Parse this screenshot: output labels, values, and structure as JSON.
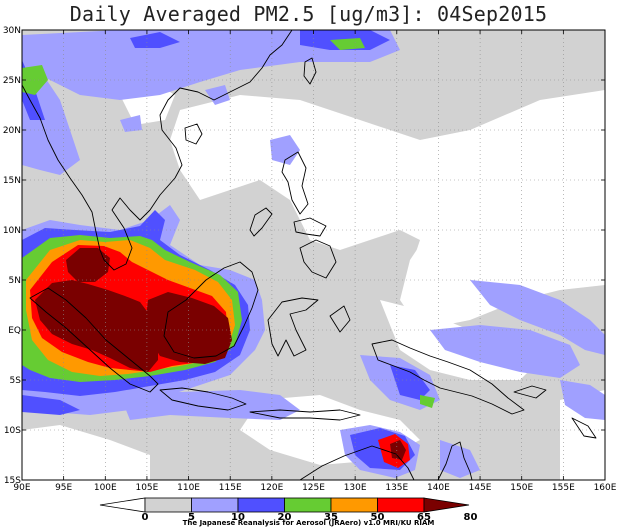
{
  "title": "Daily Averaged PM2.5 [ug/m3]: 04Sep2015",
  "credit": "The Japanese Reanalysis for Aerosol (JRAero) v1.0 MRI/KU RIAM",
  "lon_labels": [
    "90E",
    "95E",
    "100E",
    "105E",
    "110E",
    "115E",
    "120E",
    "125E",
    "130E",
    "135E",
    "140E",
    "145E",
    "150E",
    "155E",
    "160E"
  ],
  "lat_labels": [
    "30N",
    "25N",
    "20N",
    "15N",
    "10N",
    "5N",
    "EQ",
    "5S",
    "10S",
    "15S"
  ],
  "colorbar": {
    "labels": [
      "0",
      "5",
      "10",
      "20",
      "35",
      "50",
      "65",
      "80"
    ],
    "colors": [
      "#ffffff",
      "#d2d2d2",
      "#a0a0ff",
      "#5050ff",
      "#66cc33",
      "#ff9900",
      "#ff0000",
      "#7a0000"
    ]
  },
  "map": {
    "lon_range": [
      90,
      160
    ],
    "lat_range": [
      -15,
      30
    ],
    "grid": "dotted",
    "field_units": "ug/m3"
  }
}
